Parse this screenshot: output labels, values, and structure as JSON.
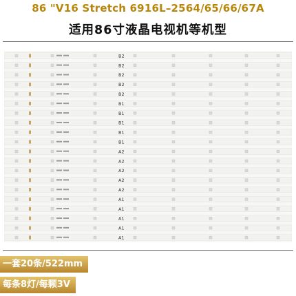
{
  "title": "86 \"V16 Stretch 6916L–2564/65/66/67A",
  "subtitle": "适用86寸液晶电视机等机型",
  "strip_labels": [
    "B2",
    "B2",
    "B2",
    "B2",
    "B2",
    "B1",
    "B1",
    "B1",
    "B1",
    "B1",
    "A2",
    "A2",
    "A2",
    "A2",
    "A2",
    "A1",
    "A1",
    "A1",
    "A1",
    "A1"
  ],
  "badges": {
    "set_info": "一套20条/522mm",
    "per_strip": "每条8灯/每颗3V"
  },
  "colors": {
    "title": "#b8860b",
    "badge_top": "#e3c36a",
    "badge_bottom": "#b8862f",
    "strip": "#f2f2ef",
    "led": "#d9d9d6"
  }
}
